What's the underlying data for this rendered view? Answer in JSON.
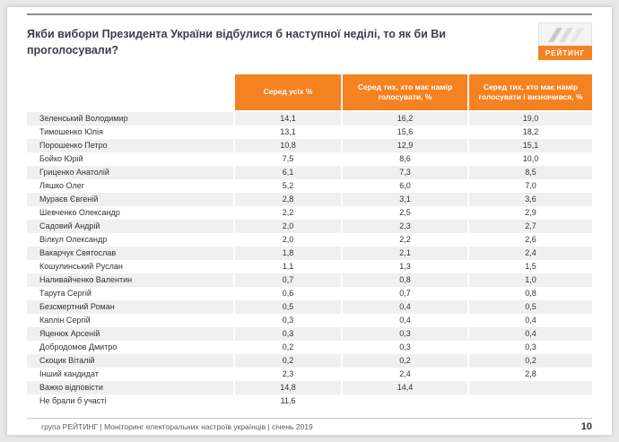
{
  "slide": {
    "title": "Якби вибори Президента України відбулися б наступної неділі, то як би Ви проголосували?",
    "logo_text": "РЕЙТИНГ",
    "footer_text": "група РЕЙТИНГ |  Моніторинг електоральних настроїв українців  |  січень 2019",
    "page_number": "10"
  },
  "colors": {
    "accent_orange": "#F58220",
    "row_alt": "#F0F0F0",
    "title_text": "#3D3D4C",
    "footer_text": "#595959"
  },
  "chart_data": {
    "type": "table",
    "columns": [
      "Серед усіх %",
      "Серед тих, хто має намір голосувати, %",
      "Серед тих, хто має намір голосувати і визначився, %"
    ],
    "rows": [
      {
        "name": "Зеленський Володимир",
        "values": [
          "14,1",
          "16,2",
          "19,0"
        ]
      },
      {
        "name": "Тимошенко Юлія",
        "values": [
          "13,1",
          "15,6",
          "18,2"
        ]
      },
      {
        "name": "Порошенко Петро",
        "values": [
          "10,8",
          "12,9",
          "15,1"
        ]
      },
      {
        "name": "Бойко Юрій",
        "values": [
          "7,5",
          "8,6",
          "10,0"
        ]
      },
      {
        "name": "Гриценко Анатолій",
        "values": [
          "6,1",
          "7,3",
          "8,5"
        ]
      },
      {
        "name": "Ляшко Олег",
        "values": [
          "5,2",
          "6,0",
          "7,0"
        ]
      },
      {
        "name": "Мураєв Євгеній",
        "values": [
          "2,8",
          "3,1",
          "3,6"
        ]
      },
      {
        "name": "Шевченко Олександр",
        "values": [
          "2,2",
          "2,5",
          "2,9"
        ]
      },
      {
        "name": "Садовий Андрій",
        "values": [
          "2,0",
          "2,3",
          "2,7"
        ]
      },
      {
        "name": "Вілкул Олександр",
        "values": [
          "2,0",
          "2,2",
          "2,6"
        ]
      },
      {
        "name": "Вакарчук Святослав",
        "values": [
          "1,8",
          "2,1",
          "2,4"
        ]
      },
      {
        "name": "Кошулинський Руслан",
        "values": [
          "1,1",
          "1,3",
          "1,5"
        ]
      },
      {
        "name": "Наливайченко Валентин",
        "values": [
          "0,7",
          "0,8",
          "1,0"
        ]
      },
      {
        "name": "Тарута Сергій",
        "values": [
          "0,6",
          "0,7",
          "0,8"
        ]
      },
      {
        "name": "Безсмертний Роман",
        "values": [
          "0,5",
          "0,4",
          "0,5"
        ]
      },
      {
        "name": "Каплін Сергій",
        "values": [
          "0,3",
          "0,4",
          "0,4"
        ]
      },
      {
        "name": "Яценюк Арсеній",
        "values": [
          "0,3",
          "0,3",
          "0,4"
        ]
      },
      {
        "name": "Добродомов Дмитро",
        "values": [
          "0,2",
          "0,3",
          "0,3"
        ]
      },
      {
        "name": "Скоцик Віталій",
        "values": [
          "0,2",
          "0,2",
          "0,2"
        ]
      },
      {
        "name": "Інший кандидат",
        "values": [
          "2,3",
          "2,4",
          "2,8"
        ]
      },
      {
        "name": "Важко відповісти",
        "values": [
          "14,8",
          "14,4",
          ""
        ]
      },
      {
        "name": "Не брали б участі",
        "values": [
          "11,6",
          "",
          ""
        ]
      }
    ]
  }
}
